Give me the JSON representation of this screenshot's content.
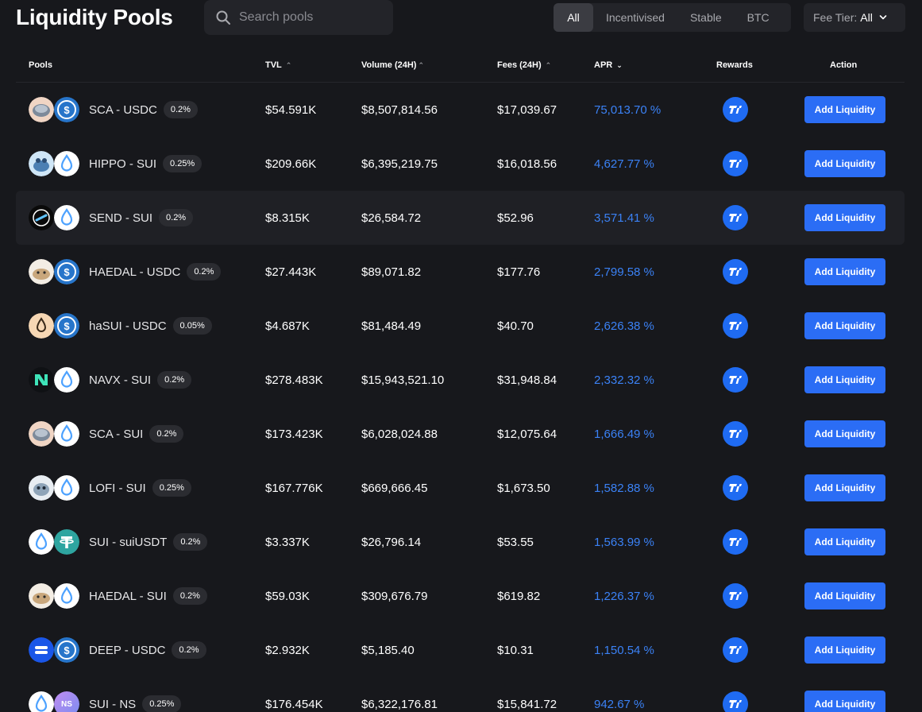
{
  "header": {
    "title": "Liquidity Pools",
    "search_placeholder": "Search pools",
    "filters": [
      "All",
      "Incentivised",
      "Stable",
      "BTC"
    ],
    "active_filter": "All",
    "fee_tier_label": "Fee Tier:",
    "fee_tier_value": "All"
  },
  "columns": {
    "pools": "Pools",
    "tvl": "TVL",
    "volume": "Volume (24H)",
    "fees": "Fees (24H)",
    "apr": "APR",
    "rewards": "Rewards",
    "action": "Action"
  },
  "add_label": "Add Liquidity",
  "rows": [
    {
      "pair": "SCA - USDC",
      "fee": "0.2%",
      "tvl": "$54.591K",
      "volume": "$8,507,814.56",
      "fees": "$17,039.67",
      "apr": "75,013.70 %",
      "tokA": "sca",
      "tokB": "usdc"
    },
    {
      "pair": "HIPPO - SUI",
      "fee": "0.25%",
      "tvl": "$209.66K",
      "volume": "$6,395,219.75",
      "fees": "$16,018.56",
      "apr": "4,627.77 %",
      "tokA": "hippo",
      "tokB": "sui"
    },
    {
      "pair": "SEND - SUI",
      "fee": "0.2%",
      "tvl": "$8.315K",
      "volume": "$26,584.72",
      "fees": "$52.96",
      "apr": "3,571.41 %",
      "tokA": "send",
      "tokB": "sui"
    },
    {
      "pair": "HAEDAL - USDC",
      "fee": "0.2%",
      "tvl": "$27.443K",
      "volume": "$89,071.82",
      "fees": "$177.76",
      "apr": "2,799.58 %",
      "tokA": "haedal",
      "tokB": "usdc"
    },
    {
      "pair": "haSUI - USDC",
      "fee": "0.05%",
      "tvl": "$4.687K",
      "volume": "$81,484.49",
      "fees": "$40.70",
      "apr": "2,626.38 %",
      "tokA": "hasui",
      "tokB": "usdc"
    },
    {
      "pair": "NAVX - SUI",
      "fee": "0.2%",
      "tvl": "$278.483K",
      "volume": "$15,943,521.10",
      "fees": "$31,948.84",
      "apr": "2,332.32 %",
      "tokA": "navx",
      "tokB": "sui"
    },
    {
      "pair": "SCA - SUI",
      "fee": "0.2%",
      "tvl": "$173.423K",
      "volume": "$6,028,024.88",
      "fees": "$12,075.64",
      "apr": "1,666.49 %",
      "tokA": "sca",
      "tokB": "sui"
    },
    {
      "pair": "LOFI - SUI",
      "fee": "0.25%",
      "tvl": "$167.776K",
      "volume": "$669,666.45",
      "fees": "$1,673.50",
      "apr": "1,582.88 %",
      "tokA": "lofi",
      "tokB": "sui"
    },
    {
      "pair": "SUI - suiUSDT",
      "fee": "0.2%",
      "tvl": "$3.337K",
      "volume": "$26,796.14",
      "fees": "$53.55",
      "apr": "1,563.99 %",
      "tokA": "sui",
      "tokB": "usdt"
    },
    {
      "pair": "HAEDAL - SUI",
      "fee": "0.2%",
      "tvl": "$59.03K",
      "volume": "$309,676.79",
      "fees": "$619.82",
      "apr": "1,226.37 %",
      "tokA": "haedal",
      "tokB": "sui"
    },
    {
      "pair": "DEEP - USDC",
      "fee": "0.2%",
      "tvl": "$2.932K",
      "volume": "$5,185.40",
      "fees": "$10.31",
      "apr": "1,150.54 %",
      "tokA": "deep",
      "tokB": "usdc"
    },
    {
      "pair": "SUI - NS",
      "fee": "0.25%",
      "tvl": "$176.454K",
      "volume": "$6,322,176.81",
      "fees": "$15,841.72",
      "apr": "942.67 %",
      "tokA": "sui",
      "tokB": "ns"
    }
  ],
  "ns_token_text": "NS",
  "colors": {
    "background": "#17181c",
    "accent": "#2b6df5",
    "apr": "#3b82f6",
    "hover_row": "#1f2025"
  }
}
